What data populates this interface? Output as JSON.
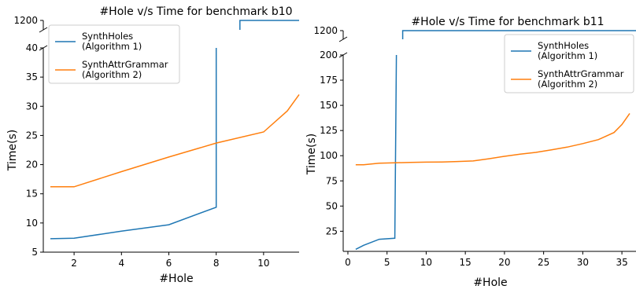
{
  "chart_data": [
    {
      "type": "line",
      "title": "#Hole v/s Time for benchmark b10",
      "xlabel": "#Hole",
      "ylabel": "Time(s)",
      "xlim": [
        0.7,
        11.5
      ],
      "ylim": [
        5,
        40
      ],
      "broken_axis_top_tick": 1200,
      "xticks": [
        2,
        4,
        6,
        8,
        10
      ],
      "yticks": [
        5,
        10,
        15,
        20,
        25,
        30,
        35,
        40
      ],
      "grid": false,
      "legend_position": "top-left",
      "series": [
        {
          "name": "SynthHoles\n(Algorithm 1)",
          "color": "#1f77b4",
          "x": [
            1,
            2,
            4,
            6,
            8,
            8
          ],
          "y": [
            7.3,
            7.4,
            8.6,
            9.7,
            12.7,
            40
          ],
          "continues_above_break": {
            "x": [
              9,
              9,
              11.5
            ],
            "y": [
              1180,
              1200,
              1200
            ]
          }
        },
        {
          "name": "SynthAttrGrammar\n(Algorithm 2)",
          "color": "#ff7f0e",
          "x": [
            1,
            2,
            4,
            6,
            8,
            10,
            11,
            11.5
          ],
          "y": [
            16.2,
            16.2,
            18.8,
            21.3,
            23.7,
            25.6,
            29.2,
            32
          ]
        }
      ]
    },
    {
      "type": "line",
      "title": "#Hole v/s Time for benchmark b11",
      "xlabel": "#Hole",
      "ylabel": "Time(s)",
      "xlim": [
        -0.6,
        36.8
      ],
      "ylim": [
        5,
        200
      ],
      "broken_axis_top_tick": 1200,
      "xticks": [
        0,
        5,
        10,
        15,
        20,
        25,
        30,
        35
      ],
      "yticks": [
        25,
        50,
        75,
        100,
        125,
        150,
        175,
        200
      ],
      "grid": false,
      "legend_position": "top-right",
      "series": [
        {
          "name": "SynthHoles\n(Algorithm 1)",
          "color": "#1f77b4",
          "x": [
            1,
            2,
            4,
            6,
            6.2
          ],
          "y": [
            7,
            11,
            17,
            18,
            200
          ],
          "continues_above_break": {
            "x": [
              7,
              7,
              36.8
            ],
            "y": [
              1180,
              1200,
              1200
            ]
          }
        },
        {
          "name": "SynthAttrGrammar\n(Algorithm 2)",
          "color": "#ff7f0e",
          "x": [
            1,
            2,
            4,
            6,
            8,
            10,
            12,
            14,
            16,
            18,
            20,
            22,
            24,
            26,
            28,
            30,
            32,
            34,
            35,
            36
          ],
          "y": [
            91,
            91,
            92.5,
            93,
            93.3,
            93.6,
            93.8,
            94.2,
            94.8,
            97,
            99.4,
            101.5,
            103.3,
            105.8,
            108.5,
            112,
            116,
            123,
            131,
            142
          ]
        }
      ]
    }
  ]
}
